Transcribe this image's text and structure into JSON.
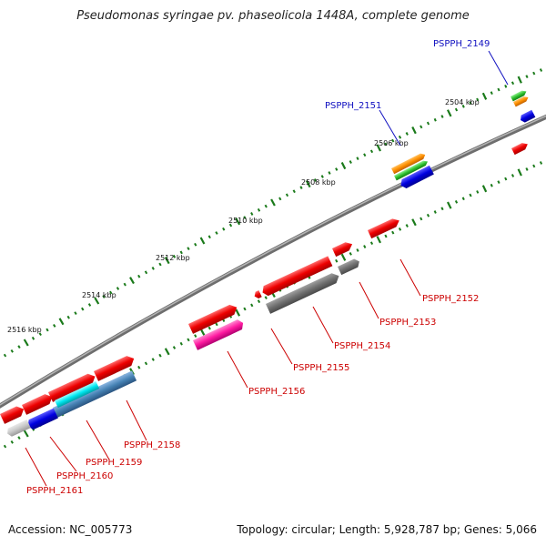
{
  "title": "Pseudomonas syringae pv. phaseolicola 1448A, complete genome",
  "footer": {
    "accession": "Accession: NC_005773",
    "summary": "Topology: circular; Length: 5,928,787 bp; Genes: 5,066"
  },
  "colors": {
    "backbone": "#8c8c8c",
    "tick": "#1a7a1a",
    "label_forward": "#1010c0",
    "label_reverse": "#cc0000"
  },
  "scale_ticks": [
    "2504 kbp",
    "2506 kbp",
    "2508 kbp",
    "2510 kbp",
    "2512 kbp",
    "2514 kbp",
    "2516 kbp"
  ],
  "gene_labels": [
    "PSPPH_2149",
    "PSPPH_2151",
    "PSPPH_2152",
    "PSPPH_2153",
    "PSPPH_2154",
    "PSPPH_2155",
    "PSPPH_2156",
    "PSPPH_2158",
    "PSPPH_2159",
    "PSPPH_2160",
    "PSPPH_2161"
  ]
}
